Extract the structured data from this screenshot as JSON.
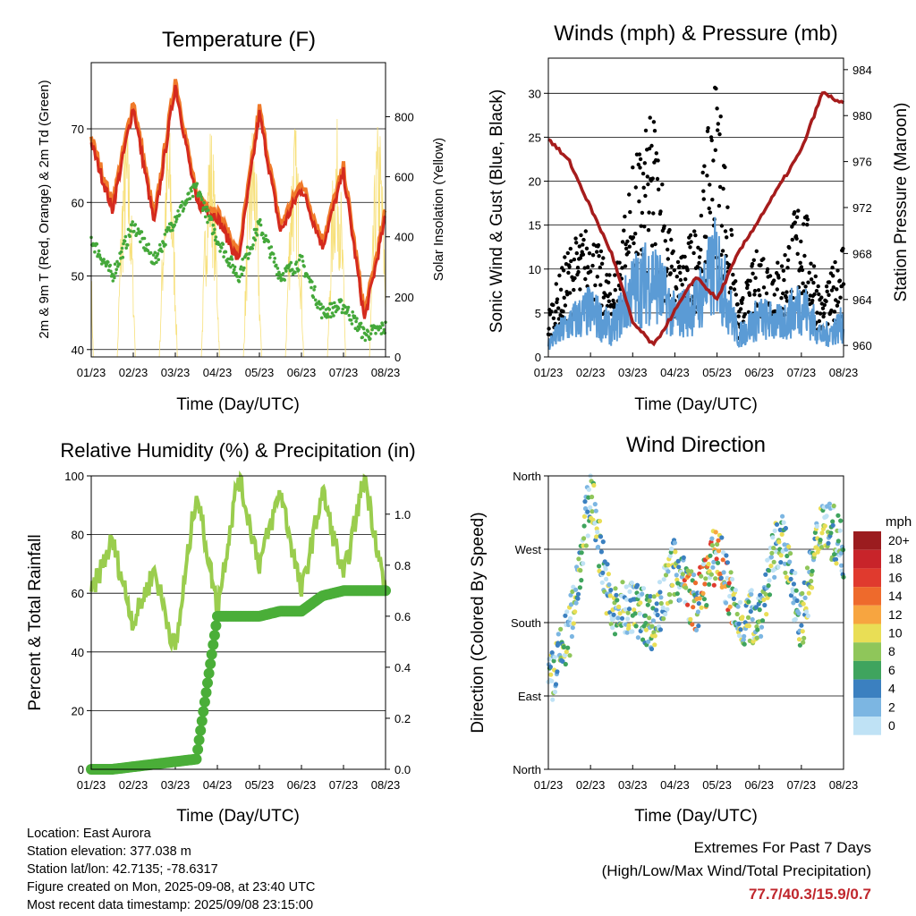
{
  "xticks": [
    "01/23",
    "02/23",
    "03/23",
    "04/23",
    "05/23",
    "06/23",
    "07/23",
    "08/23"
  ],
  "xlabel": "Time (Day/UTC)",
  "panels": {
    "temperature": {
      "title": "Temperature (F)",
      "ylabel_left": "2m & 9m T (Red, Orange) & 2m Td (Green)",
      "ylabel_right": "Solar Insolation (Yellow)",
      "yticks_left": [
        "40",
        "50",
        "60",
        "70"
      ],
      "yticks_right": [
        "0",
        "200",
        "400",
        "600",
        "800"
      ]
    },
    "winds": {
      "title": "Winds (mph) & Pressure (mb)",
      "ylabel_left": "Sonic Wind & Gust (Blue, Black)",
      "ylabel_right": "Station Pressure (Maroon)",
      "yticks_left": [
        "0",
        "5",
        "10",
        "15",
        "20",
        "25",
        "30"
      ],
      "yticks_right": [
        "960",
        "964",
        "968",
        "972",
        "976",
        "980",
        "984"
      ]
    },
    "humidity": {
      "title": "Relative Humidity (%) & Precipitation (in)",
      "ylabel_left": "Percent & Total Rainfall",
      "yticks_left": [
        "0",
        "20",
        "40",
        "60",
        "80",
        "100"
      ],
      "yticks_right": [
        "0.0",
        "0.2",
        "0.4",
        "0.6",
        "0.8",
        "1.0"
      ]
    },
    "direction": {
      "title": "Wind Direction",
      "ylabel_left": "Direction (Colored By Speed)",
      "yticks_left": [
        "North",
        "East",
        "South",
        "West",
        "North"
      ],
      "legend_title": "mph",
      "legend_labels": [
        "20+",
        "18",
        "16",
        "14",
        "12",
        "10",
        "8",
        "6",
        "4",
        "2",
        "0"
      ],
      "legend_colors": [
        "#9b1c1f",
        "#c8242a",
        "#e03a2e",
        "#ee6a2c",
        "#f7a540",
        "#e9de55",
        "#8fc65a",
        "#3fa45e",
        "#3b80c0",
        "#7cb6e2",
        "#bfe2f5"
      ]
    }
  },
  "info": {
    "location": "Location: East Aurora",
    "elevation": "Station elevation: 377.038 m",
    "latlon": "Station lat/lon: 42.7135; -78.6317",
    "created": "Figure created on Mon, 2025-09-08, at 23:40 UTC",
    "recent": "Most recent data timestamp: 2025/09/08 23:15:00"
  },
  "extremes": {
    "line1": "Extremes For Past 7 Days",
    "line2": "(High/Low/Max Wind/Total Precipitation)",
    "values": "77.7/40.3/15.9/0.7"
  },
  "colors": {
    "temp_2m": "#d42a1e",
    "temp_9m": "#f07a2a",
    "dewpoint": "#44a83a",
    "solar": "#f7e07a",
    "wind": "#5b9bd5",
    "gust": "#000000",
    "pressure": "#a61c1c",
    "rh": "#9acd4e",
    "precip": "#4aae38"
  },
  "chart_data": [
    {
      "type": "line",
      "title": "Temperature (F)",
      "xlabel": "Time (Day/UTC)",
      "ylabel": "2m & 9m T (Red, Orange) & 2m Td (Green)",
      "ylim": [
        39,
        79
      ],
      "y2label": "Solar Insolation (Yellow)",
      "y2lim": [
        0,
        980
      ],
      "x": [
        0,
        0.5,
        1,
        1.5,
        2,
        2.5,
        3,
        3.5,
        4,
        4.5,
        5,
        5.5,
        6,
        6.5,
        7
      ],
      "series": [
        {
          "name": "2m & 9m T (Red, Orange)",
          "values": [
            68,
            59,
            73,
            57,
            76,
            60,
            58,
            52,
            72,
            56,
            62,
            54,
            64,
            44,
            58
          ]
        },
        {
          "name": "2m Td (Green)",
          "values": [
            55,
            50,
            57,
            52,
            58,
            62,
            55,
            50,
            57,
            50,
            52,
            45,
            46,
            42,
            43
          ]
        },
        {
          "name": "Solar Insolation (Yellow)",
          "axis": "right",
          "values": [
            0,
            920,
            0,
            850,
            0,
            750,
            0,
            820,
            0,
            700,
            0,
            850,
            0,
            940,
            0
          ]
        }
      ]
    },
    {
      "type": "line",
      "title": "Winds (mph) & Pressure (mb)",
      "xlabel": "Time (Day/UTC)",
      "ylabel": "Sonic Wind & Gust (Blue, Black)",
      "ylim": [
        0,
        34
      ],
      "y2label": "Station Pressure (Maroon)",
      "y2lim": [
        959,
        985
      ],
      "x": [
        0,
        0.5,
        1,
        1.5,
        2,
        2.5,
        3,
        3.5,
        4,
        4.5,
        5,
        5.5,
        6,
        6.5,
        7
      ],
      "series": [
        {
          "name": "Sonic Wind (Blue)",
          "values": [
            2,
            5,
            7,
            4,
            10,
            12,
            6,
            8,
            14,
            3,
            6,
            5,
            8,
            3,
            5
          ]
        },
        {
          "name": "Gust (Black)",
          "values": [
            5,
            12,
            14,
            8,
            20,
            26,
            10,
            14,
            31,
            5,
            12,
            10,
            18,
            6,
            13
          ]
        },
        {
          "name": "Station Pressure (Maroon)",
          "axis": "right",
          "values": [
            978,
            976,
            972,
            968,
            962,
            960,
            963,
            966,
            964,
            968,
            971,
            974,
            977,
            982,
            981
          ]
        }
      ]
    },
    {
      "type": "line",
      "title": "Relative Humidity (%) & Precipitation (in)",
      "xlabel": "Time (Day/UTC)",
      "ylabel": "Percent & Total Rainfall",
      "ylim": [
        0,
        100
      ],
      "y2lim": [
        0.0,
        1.15
      ],
      "x": [
        0,
        0.5,
        1,
        1.5,
        2,
        2.5,
        3,
        3.5,
        4,
        4.5,
        5,
        5.5,
        6,
        6.5,
        7
      ],
      "series": [
        {
          "name": "Relative Humidity",
          "values": [
            60,
            78,
            50,
            68,
            40,
            95,
            55,
            100,
            70,
            95,
            60,
            95,
            65,
            100,
            60
          ]
        },
        {
          "name": "Total Precipitation",
          "axis": "right",
          "values": [
            0.0,
            0.0,
            0.01,
            0.02,
            0.03,
            0.04,
            0.6,
            0.6,
            0.6,
            0.62,
            0.62,
            0.68,
            0.7,
            0.7,
            0.7
          ]
        }
      ]
    },
    {
      "type": "scatter",
      "title": "Wind Direction",
      "xlabel": "Time (Day/UTC)",
      "ylabel": "Direction (Colored By Speed)",
      "ylim": [
        0,
        360
      ],
      "x": [
        0,
        0.5,
        1,
        1.5,
        2,
        2.5,
        3,
        3.5,
        4,
        4.5,
        5,
        5.5,
        6,
        6.5,
        7
      ],
      "series": [
        {
          "name": "Direction",
          "values": [
            100,
            170,
            340,
            190,
            200,
            180,
            250,
            200,
            270,
            180,
            190,
            290,
            180,
            310,
            270
          ]
        }
      ]
    }
  ]
}
